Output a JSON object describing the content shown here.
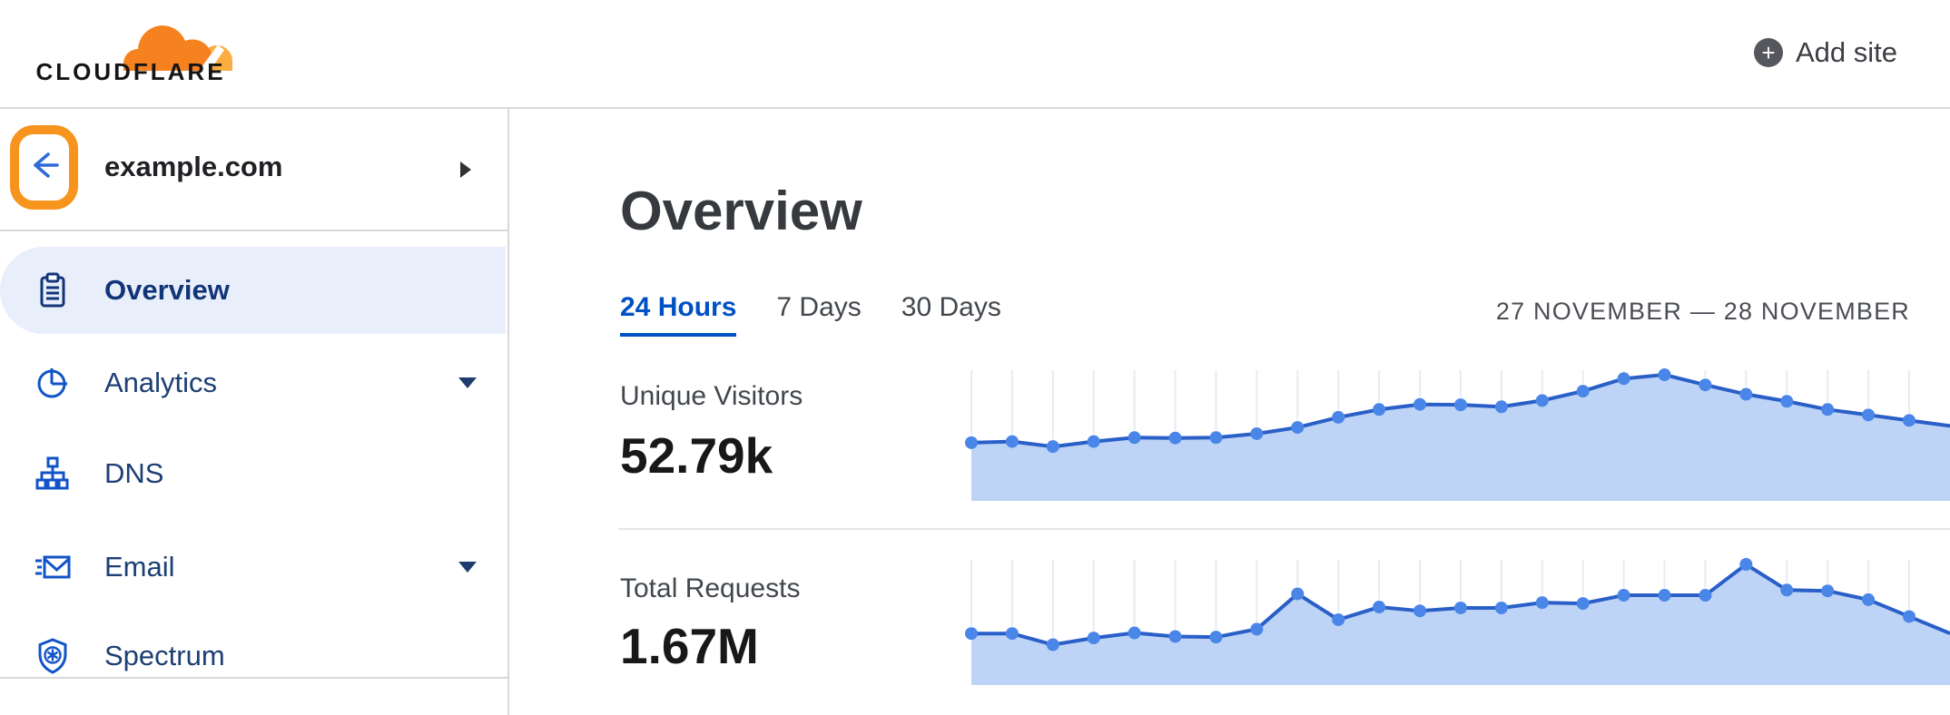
{
  "header": {
    "logo_text": "CLOUDFLARE",
    "add_site_label": "Add site"
  },
  "sidebar": {
    "site": {
      "name": "example.com"
    },
    "items": [
      {
        "label": "Overview",
        "icon": "clipboard-icon",
        "selected": true,
        "has_caret": false
      },
      {
        "label": "Analytics",
        "icon": "pie-chart-icon",
        "selected": false,
        "has_caret": true
      },
      {
        "label": "DNS",
        "icon": "sitemap-icon",
        "selected": false,
        "has_caret": false
      },
      {
        "label": "Email",
        "icon": "envelope-icon",
        "selected": false,
        "has_caret": true
      },
      {
        "label": "Spectrum",
        "icon": "shield-icon",
        "selected": false,
        "has_caret": false
      }
    ]
  },
  "main": {
    "title": "Overview",
    "tabs": [
      {
        "label": "24 Hours",
        "active": true
      },
      {
        "label": "7 Days",
        "active": false
      },
      {
        "label": "30 Days",
        "active": false
      }
    ],
    "date_range": "27 NOVEMBER — 28 NOVEMBER",
    "metrics": [
      {
        "label": "Unique Visitors",
        "value": "52.79k"
      },
      {
        "label": "Total Requests",
        "value": "1.67M"
      }
    ]
  },
  "colors": {
    "brand_orange": "#f6821f",
    "brand_orange_light": "#fbad41",
    "highlight_orange": "#f7941e",
    "link_blue": "#0051c3",
    "nav_navy": "#1c3f74",
    "nav_selected_navy": "#12357a",
    "nav_icon_blue": "#1254c8",
    "selected_bg": "#e9effa",
    "chart_line": "#2a5fc8",
    "chart_dot": "#4a86e8",
    "chart_fill": "#bdd4f7",
    "chart_grid": "#e8ebf3",
    "text_dark": "#17181a",
    "text_gray": "#42474d",
    "border_gray": "#d9d9d9"
  },
  "chart_data": [
    {
      "type": "area",
      "title": "Unique Visitors",
      "summary_value": "52.79k",
      "xlabel": "",
      "ylabel": "",
      "x_unit": "hour (24 Hours range)",
      "x": [
        0,
        1,
        2,
        3,
        4,
        5,
        6,
        7,
        8,
        9,
        10,
        11,
        12,
        13,
        14,
        15,
        16,
        17,
        18,
        19,
        20,
        21,
        22,
        23
      ],
      "values": [
        1490,
        1520,
        1390,
        1520,
        1620,
        1610,
        1620,
        1720,
        1880,
        2140,
        2340,
        2470,
        2460,
        2410,
        2570,
        2810,
        3130,
        3230,
        2970,
        2730,
        2550,
        2340,
        2200,
        2060
      ],
      "ylim": [
        0,
        3300
      ],
      "grid": "vertical-ticks-only",
      "legend": "none"
    },
    {
      "type": "area",
      "title": "Total Requests",
      "summary_value": "1.67M",
      "xlabel": "",
      "ylabel": "",
      "x_unit": "hour (24 Hours range)",
      "x": [
        0,
        1,
        2,
        3,
        4,
        5,
        6,
        7,
        8,
        9,
        10,
        11,
        12,
        13,
        14,
        15,
        16,
        17,
        18,
        19,
        20,
        21,
        22,
        23
      ],
      "values": [
        49000,
        49000,
        38400,
        44800,
        49600,
        46200,
        45600,
        53200,
        86800,
        62200,
        74200,
        70600,
        73400,
        73400,
        78400,
        77600,
        85400,
        85400,
        85400,
        114800,
        90400,
        89600,
        81200,
        65200
      ],
      "ylim": [
        0,
        118000
      ],
      "grid": "vertical-ticks-only",
      "legend": "none"
    }
  ]
}
